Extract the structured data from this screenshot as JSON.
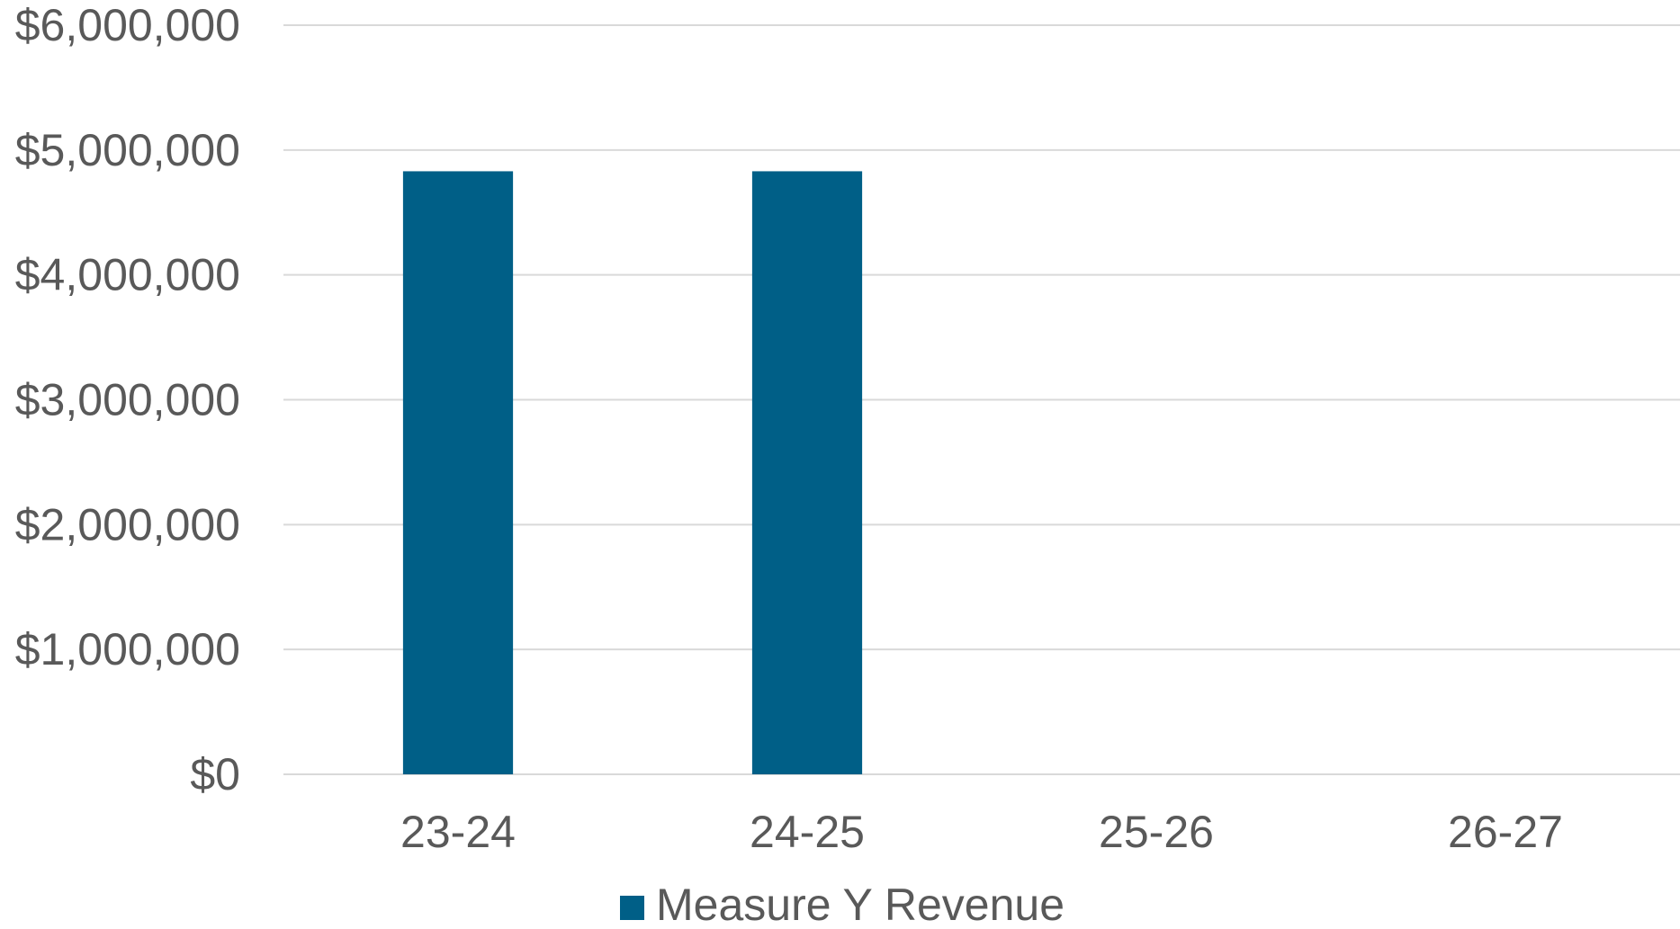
{
  "chart_data": {
    "type": "bar",
    "categories": [
      "23-24",
      "24-25",
      "25-26",
      "26-27"
    ],
    "series": [
      {
        "name": "Measure Y Revenue",
        "values": [
          4830000,
          4830000,
          0,
          0
        ],
        "color": "#005f87"
      }
    ],
    "y_ticks": [
      0,
      1000000,
      2000000,
      3000000,
      4000000,
      5000000,
      6000000
    ],
    "y_tick_labels": [
      "$0",
      "$1,000,000",
      "$2,000,000",
      "$3,000,000",
      "$4,000,000",
      "$5,000,000",
      "$6,000,000"
    ],
    "ylim": [
      0,
      6000000
    ],
    "grid": true,
    "gridline_color": "#d9d9d9",
    "legend_position": "bottom",
    "title": "",
    "xlabel": "",
    "ylabel": ""
  }
}
